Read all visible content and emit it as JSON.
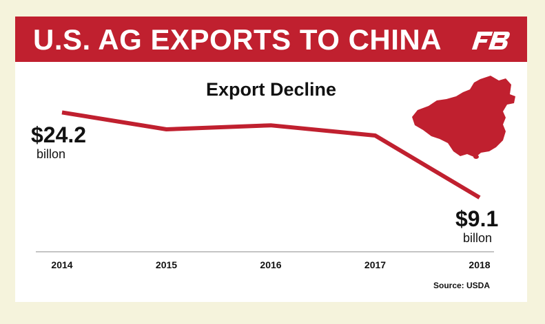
{
  "banner": {
    "title": "U.S. AG EXPORTS TO CHINA",
    "logo_text": "FB"
  },
  "colors": {
    "accent": "#c0202f",
    "background": "#f5f3dc"
  },
  "annotations": {
    "start": {
      "value": "$24.2",
      "unit": "billon"
    },
    "end": {
      "value": "$9.1",
      "unit": "billon"
    }
  },
  "source": "Source: USDA",
  "chart_data": {
    "type": "line",
    "title": "Export Decline",
    "xlabel": "",
    "ylabel": "",
    "categories": [
      "2014",
      "2015",
      "2016",
      "2017",
      "2018"
    ],
    "series": [
      {
        "values": [
          24.2,
          21.2,
          21.9,
          20.1,
          9.1
        ]
      }
    ],
    "ylim": [
      4,
      29
    ],
    "grid": false,
    "legend": "none"
  }
}
